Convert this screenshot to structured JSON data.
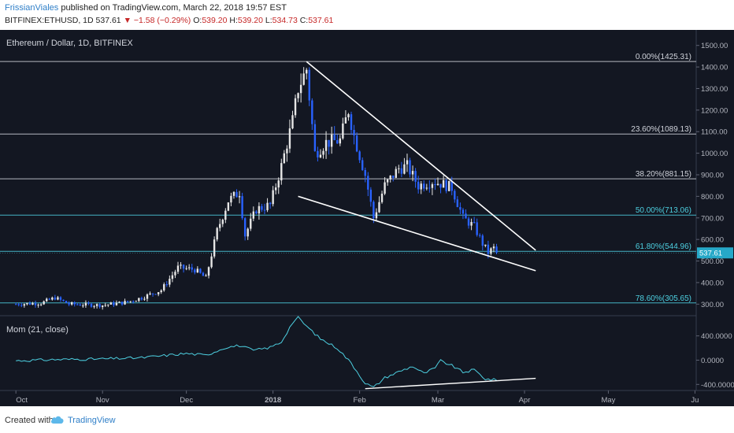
{
  "header": {
    "author": "FrissianViales",
    "published": " published on TradingView.com, March 22, 2018 19:57 EST",
    "symbol": "BITFINEX:ETHUSD, 1D",
    "last": "537.61",
    "change_arrow": "▼",
    "change": "−1.58 (−0.29%)",
    "o_label": "O:",
    "o_value": "539.20",
    "h_label": "H:",
    "h_value": "539.20",
    "l_label": "L:",
    "l_value": "534.73",
    "c_label": "C:",
    "c_value": "537.61"
  },
  "footer": {
    "created_with": "Created with",
    "brand": "TradingView"
  },
  "chart_data": [
    {
      "type": "candlestick",
      "title": "Ethereum / Dollar, 1D, BITFINEX",
      "ylim": [
        250,
        1550
      ],
      "y_ticks": [
        "1500.00",
        "1400.00",
        "1300.00",
        "1200.00",
        "1100.00",
        "1000.00",
        "900.00",
        "800.00",
        "700.00",
        "600.00",
        "500.00",
        "400.00",
        "300.00"
      ],
      "x_ticks": [
        "Oct",
        "Nov",
        "Dec",
        "2018",
        "Feb",
        "Mar",
        "Apr",
        "May",
        "Ju"
      ],
      "last_price_label": "537.61",
      "fib_levels": [
        {
          "label": "0.00%(1425.31)",
          "value": 1425.31,
          "color": "#d1d4dc"
        },
        {
          "label": "23.60%(1089.13)",
          "value": 1089.13,
          "color": "#d1d4dc"
        },
        {
          "label": "38.20%(881.15)",
          "value": 881.15,
          "color": "#d1d4dc"
        },
        {
          "label": "50.00%(713.06)",
          "value": 713.06,
          "color": "#4dd0e1"
        },
        {
          "label": "61.80%(544.96)",
          "value": 544.96,
          "color": "#4dd0e1"
        },
        {
          "label": "78.60%(305.65)",
          "value": 305.65,
          "color": "#4dd0e1"
        }
      ],
      "trendlines": [
        {
          "from": [
            "2018-01-13",
            1425
          ],
          "to": [
            "2018-04-05",
            550
          ]
        },
        {
          "from": [
            "2018-01-10",
            800
          ],
          "to": [
            "2018-04-05",
            455
          ]
        }
      ],
      "price_path": [
        [
          "2017-10-01",
          300
        ],
        [
          "2017-10-10",
          305
        ],
        [
          "2017-10-15",
          330
        ],
        [
          "2017-10-20",
          300
        ],
        [
          "2017-11-01",
          295
        ],
        [
          "2017-11-10",
          310
        ],
        [
          "2017-11-15",
          330
        ],
        [
          "2017-11-22",
          365
        ],
        [
          "2017-11-28",
          470
        ],
        [
          "2017-12-04",
          460
        ],
        [
          "2017-12-08",
          420
        ],
        [
          "2017-12-12",
          640
        ],
        [
          "2017-12-16",
          780
        ],
        [
          "2017-12-20",
          820
        ],
        [
          "2017-12-22",
          620
        ],
        [
          "2017-12-26",
          740
        ],
        [
          "2017-12-31",
          760
        ],
        [
          "2018-01-04",
          940
        ],
        [
          "2018-01-08",
          1150
        ],
        [
          "2018-01-10",
          1300
        ],
        [
          "2018-01-13",
          1390
        ],
        [
          "2018-01-16",
          1000
        ],
        [
          "2018-01-20",
          1050
        ],
        [
          "2018-01-25",
          1060
        ],
        [
          "2018-01-28",
          1200
        ],
        [
          "2018-01-30",
          1080
        ],
        [
          "2018-02-03",
          900
        ],
        [
          "2018-02-06",
          700
        ],
        [
          "2018-02-10",
          850
        ],
        [
          "2018-02-15",
          930
        ],
        [
          "2018-02-18",
          940
        ],
        [
          "2018-02-22",
          850
        ],
        [
          "2018-02-27",
          870
        ],
        [
          "2018-03-02",
          860
        ],
        [
          "2018-03-06",
          840
        ],
        [
          "2018-03-10",
          700
        ],
        [
          "2018-03-14",
          660
        ],
        [
          "2018-03-17",
          580
        ],
        [
          "2018-03-19",
          540
        ],
        [
          "2018-03-21",
          560
        ],
        [
          "2018-03-22",
          537.61
        ]
      ]
    },
    {
      "type": "line",
      "title": "Mom (21, close)",
      "ylim": [
        -500,
        720
      ],
      "y_ticks": [
        "400.0000",
        "0.0000",
        "-400.0000"
      ],
      "series": [
        {
          "values": [
            [
              "2017-10-01",
              -10
            ],
            [
              "2017-10-15",
              10
            ],
            [
              "2017-11-01",
              20
            ],
            [
              "2017-11-15",
              40
            ],
            [
              "2017-12-01",
              110
            ],
            [
              "2017-12-08",
              80
            ],
            [
              "2017-12-15",
              210
            ],
            [
              "2017-12-20",
              240
            ],
            [
              "2017-12-25",
              160
            ],
            [
              "2017-12-31",
              210
            ],
            [
              "2018-01-04",
              300
            ],
            [
              "2018-01-08",
              620
            ],
            [
              "2018-01-10",
              700
            ],
            [
              "2018-01-13",
              560
            ],
            [
              "2018-01-18",
              350
            ],
            [
              "2018-01-24",
              200
            ],
            [
              "2018-01-29",
              -50
            ],
            [
              "2018-02-03",
              -380
            ],
            [
              "2018-02-06",
              -450
            ],
            [
              "2018-02-10",
              -290
            ],
            [
              "2018-02-15",
              -190
            ],
            [
              "2018-02-20",
              -100
            ],
            [
              "2018-02-24",
              -220
            ],
            [
              "2018-02-28",
              -130
            ],
            [
              "2018-03-02",
              -10
            ],
            [
              "2018-03-06",
              -90
            ],
            [
              "2018-03-10",
              -200
            ],
            [
              "2018-03-14",
              -160
            ],
            [
              "2018-03-18",
              -310
            ],
            [
              "2018-03-22",
              -330
            ]
          ]
        }
      ],
      "trendline": {
        "from": [
          "2018-02-03",
          -470
        ],
        "to": [
          "2018-04-05",
          -300
        ]
      }
    }
  ]
}
